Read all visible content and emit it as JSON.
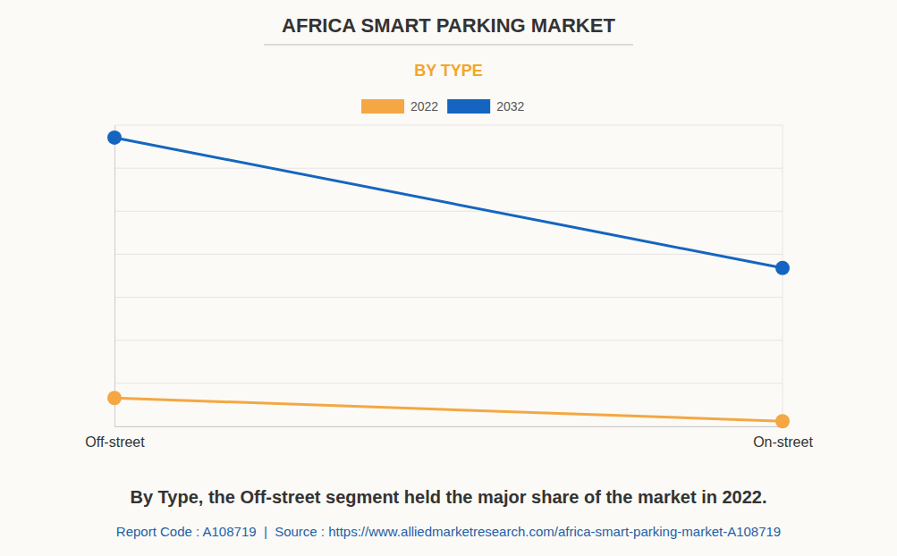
{
  "chart_data": {
    "type": "line",
    "title": "AFRICA SMART PARKING MARKET",
    "subtitle": "BY TYPE",
    "categories": [
      "Off-street",
      "On-street"
    ],
    "series": [
      {
        "name": "2022",
        "color": "#f4a742",
        "values": [
          0.66,
          0.12
        ],
        "marker": "circle"
      },
      {
        "name": "2032",
        "color": "#1565c0",
        "values": [
          6.71,
          3.68
        ],
        "marker": "circle"
      }
    ],
    "ylim": [
      0,
      7
    ],
    "yticks": [
      0,
      1,
      2,
      3,
      4,
      5,
      6,
      7
    ],
    "grid": true,
    "legend": "top",
    "tick_labels": "x",
    "annotations": [
      "By Type, the Off-street segment held the major share of the market in 2022.",
      "Report Code : A108719  |  Source : https://www.alliedmarketresearch.com/africa-smart-parking-market-A108719"
    ]
  }
}
